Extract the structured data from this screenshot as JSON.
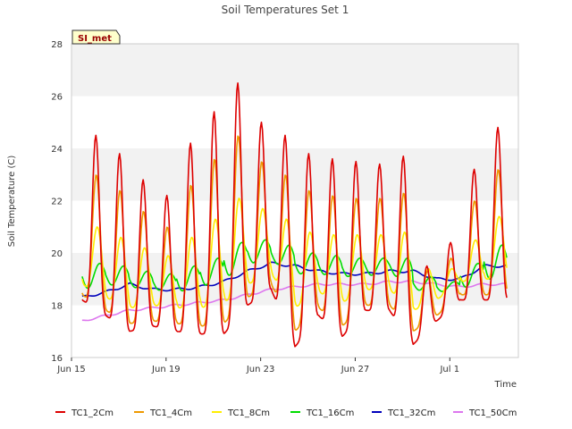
{
  "chart_data": {
    "type": "line",
    "title": "Soil Temperatures Set 1",
    "xlabel": "Time",
    "ylabel": "Soil Temperature (C)",
    "ylim": [
      16,
      28
    ],
    "yticks": [
      16,
      18,
      20,
      22,
      24,
      26,
      28
    ],
    "xlim": [
      "2023-06-15",
      "2023-07-04"
    ],
    "xticks": [
      {
        "date": "2023-06-15",
        "label": "Jun 15"
      },
      {
        "date": "2023-06-19",
        "label": "Jun 19"
      },
      {
        "date": "2023-06-23",
        "label": "Jun 23"
      },
      {
        "date": "2023-06-27",
        "label": "Jun 27"
      },
      {
        "date": "2023-07-01",
        "label": "Jul 1"
      }
    ],
    "grid": "horizontal bands",
    "legend_position": "bottom",
    "annotation": "SI_met",
    "colors": {
      "TC1_2Cm": "#dd0000",
      "TC1_4Cm": "#ee9900",
      "TC1_8Cm": "#ffee00",
      "TC1_16Cm": "#00dd00",
      "TC1_32Cm": "#0000bb",
      "TC1_50Cm": "#dd77ee"
    },
    "x": [
      "Jun 15",
      "Jun 16",
      "Jun 17",
      "Jun 18",
      "Jun 19",
      "Jun 20",
      "Jun 21",
      "Jun 22",
      "Jun 23",
      "Jun 24",
      "Jun 25",
      "Jun 26",
      "Jun 27",
      "Jun 28",
      "Jun 29",
      "Jun 30",
      "Jul 1",
      "Jul 2"
    ],
    "series": [
      {
        "name": "TC1_2Cm",
        "daily_min": [
          18.2,
          17.6,
          17.0,
          17.2,
          17.0,
          16.9,
          16.9,
          18.0,
          18.6,
          16.4,
          17.6,
          16.8,
          17.8,
          17.8,
          16.5,
          17.4,
          18.2,
          18.2
        ],
        "daily_max": [
          24.5,
          23.8,
          22.8,
          22.2,
          24.2,
          25.4,
          26.5,
          25.0,
          24.5,
          23.8,
          23.6,
          23.5,
          23.4,
          23.7,
          19.5,
          20.4,
          23.2,
          24.8
        ]
      },
      {
        "name": "TC1_4Cm",
        "daily_min": [
          18.4,
          17.8,
          17.3,
          17.4,
          17.3,
          17.2,
          17.3,
          18.3,
          18.8,
          17.0,
          17.9,
          17.2,
          18.0,
          18.0,
          17.0,
          17.6,
          18.4,
          18.4
        ],
        "daily_max": [
          23.0,
          22.4,
          21.6,
          21.0,
          22.6,
          23.6,
          24.5,
          23.5,
          23.0,
          22.4,
          22.2,
          22.1,
          22.1,
          22.3,
          19.3,
          19.8,
          22.0,
          23.2
        ]
      },
      {
        "name": "TC1_8Cm",
        "daily_min": [
          18.8,
          18.3,
          17.9,
          18.0,
          17.9,
          17.9,
          18.1,
          18.8,
          19.2,
          17.9,
          18.5,
          18.1,
          18.6,
          18.6,
          17.8,
          18.2,
          18.9,
          19.0
        ],
        "daily_max": [
          21.0,
          20.6,
          20.2,
          19.9,
          20.6,
          21.3,
          22.1,
          21.7,
          21.3,
          20.8,
          20.7,
          20.7,
          20.7,
          20.8,
          19.4,
          19.4,
          20.5,
          21.4
        ]
      },
      {
        "name": "TC1_16Cm",
        "daily_min": [
          18.6,
          18.8,
          18.7,
          18.6,
          18.5,
          18.7,
          19.0,
          19.6,
          19.7,
          19.2,
          19.2,
          19.1,
          19.1,
          19.3,
          18.6,
          18.5,
          18.6,
          19.0
        ],
        "daily_max": [
          19.6,
          19.5,
          19.3,
          19.2,
          19.5,
          19.8,
          20.4,
          20.5,
          20.3,
          20.0,
          19.9,
          19.8,
          19.8,
          19.8,
          19.1,
          18.9,
          19.6,
          20.3
        ]
      },
      {
        "name": "TC1_32Cm",
        "values": [
          18.3,
          18.5,
          18.8,
          18.6,
          18.6,
          18.7,
          18.9,
          19.3,
          19.6,
          19.5,
          19.3,
          19.2,
          19.2,
          19.3,
          19.3,
          19.0,
          19.0,
          19.5
        ]
      },
      {
        "name": "TC1_50Cm",
        "values": [
          17.4,
          17.6,
          17.8,
          17.9,
          18.0,
          18.1,
          18.2,
          18.4,
          18.6,
          18.7,
          18.8,
          18.8,
          18.8,
          18.9,
          18.9,
          18.8,
          18.7,
          18.8
        ]
      }
    ]
  }
}
